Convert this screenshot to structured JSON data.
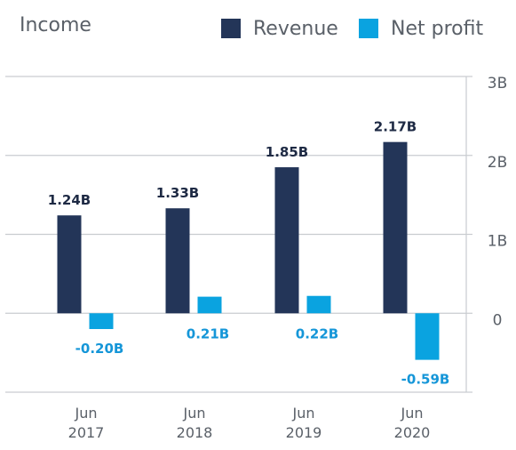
{
  "chart_data": {
    "type": "bar",
    "title": "Income",
    "categories": [
      [
        "Jun",
        "2017"
      ],
      [
        "Jun",
        "2018"
      ],
      [
        "Jun",
        "2019"
      ],
      [
        "Jun",
        "2020"
      ]
    ],
    "series": [
      {
        "name": "Revenue",
        "color": "#233558",
        "values": [
          1.24,
          1.33,
          1.85,
          2.17
        ],
        "labels": [
          "1.24B",
          "1.33B",
          "1.85B",
          "2.17B"
        ]
      },
      {
        "name": "Net profit",
        "color": "#0aa3e0",
        "values": [
          -0.2,
          0.21,
          0.22,
          -0.59
        ],
        "labels": [
          "-0.20B",
          "0.21B",
          "0.22B",
          "-0.59B"
        ]
      }
    ],
    "ylim": [
      -1,
      3
    ],
    "yticks": [
      0,
      1,
      2,
      3
    ],
    "ytick_labels": [
      "0",
      "1B",
      "2B",
      "3B"
    ],
    "yaxis_position": "right",
    "grid": true,
    "legend_position": "top-right"
  }
}
